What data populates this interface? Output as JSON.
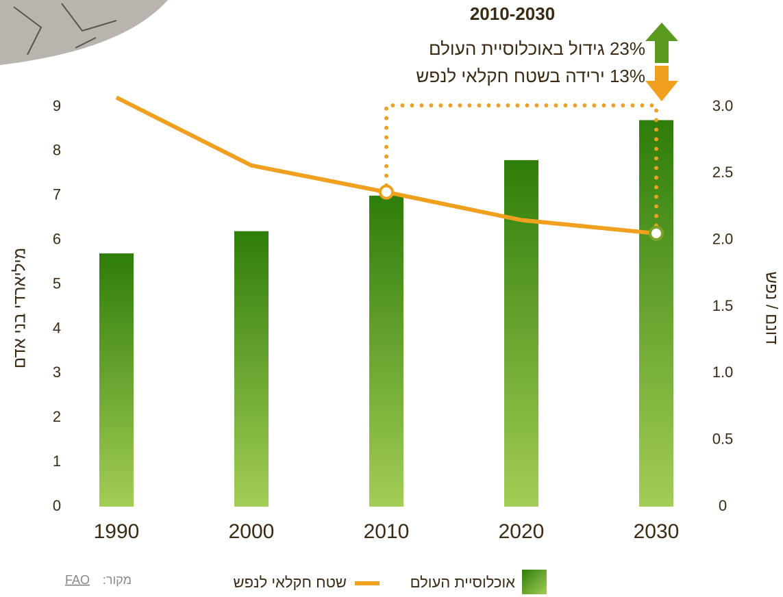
{
  "chart_data": {
    "type": "bar",
    "title": "2010-2030",
    "annotations": [
      "23% גידול באוכלוסיית העולם",
      "13% ירידה בשטח חקלאי לנפש"
    ],
    "y_label": "מיליארדי בני אדם",
    "y2_label": "דונם / נפש",
    "categories": [
      "1990",
      "2000",
      "2010",
      "2020",
      "2030"
    ],
    "series": [
      {
        "name": "אוכלוסיית העולם",
        "type": "bar",
        "color": "#2e7d0a",
        "values": [
          5.7,
          6.2,
          7.0,
          7.8,
          8.7
        ]
      },
      {
        "name": "שטח חקלאי לנפש",
        "type": "line",
        "axis": "y2",
        "color": "#f0a01e",
        "values": [
          3.07,
          2.56,
          2.36,
          2.15,
          2.05
        ]
      }
    ],
    "ylim": [
      0,
      9
    ],
    "yticks": [
      0,
      1,
      2,
      3,
      4,
      5,
      6,
      7,
      8,
      9
    ],
    "y2lim": [
      0,
      3
    ],
    "y2ticks": [
      0,
      0.5,
      {
        "value": 1,
        "label": "1.0"
      },
      1.5,
      {
        "value": 2,
        "label": "2.0"
      },
      2.5,
      {
        "value": 3,
        "label": "3.0"
      }
    ],
    "source_label": "מקור:",
    "source": "FAO"
  }
}
